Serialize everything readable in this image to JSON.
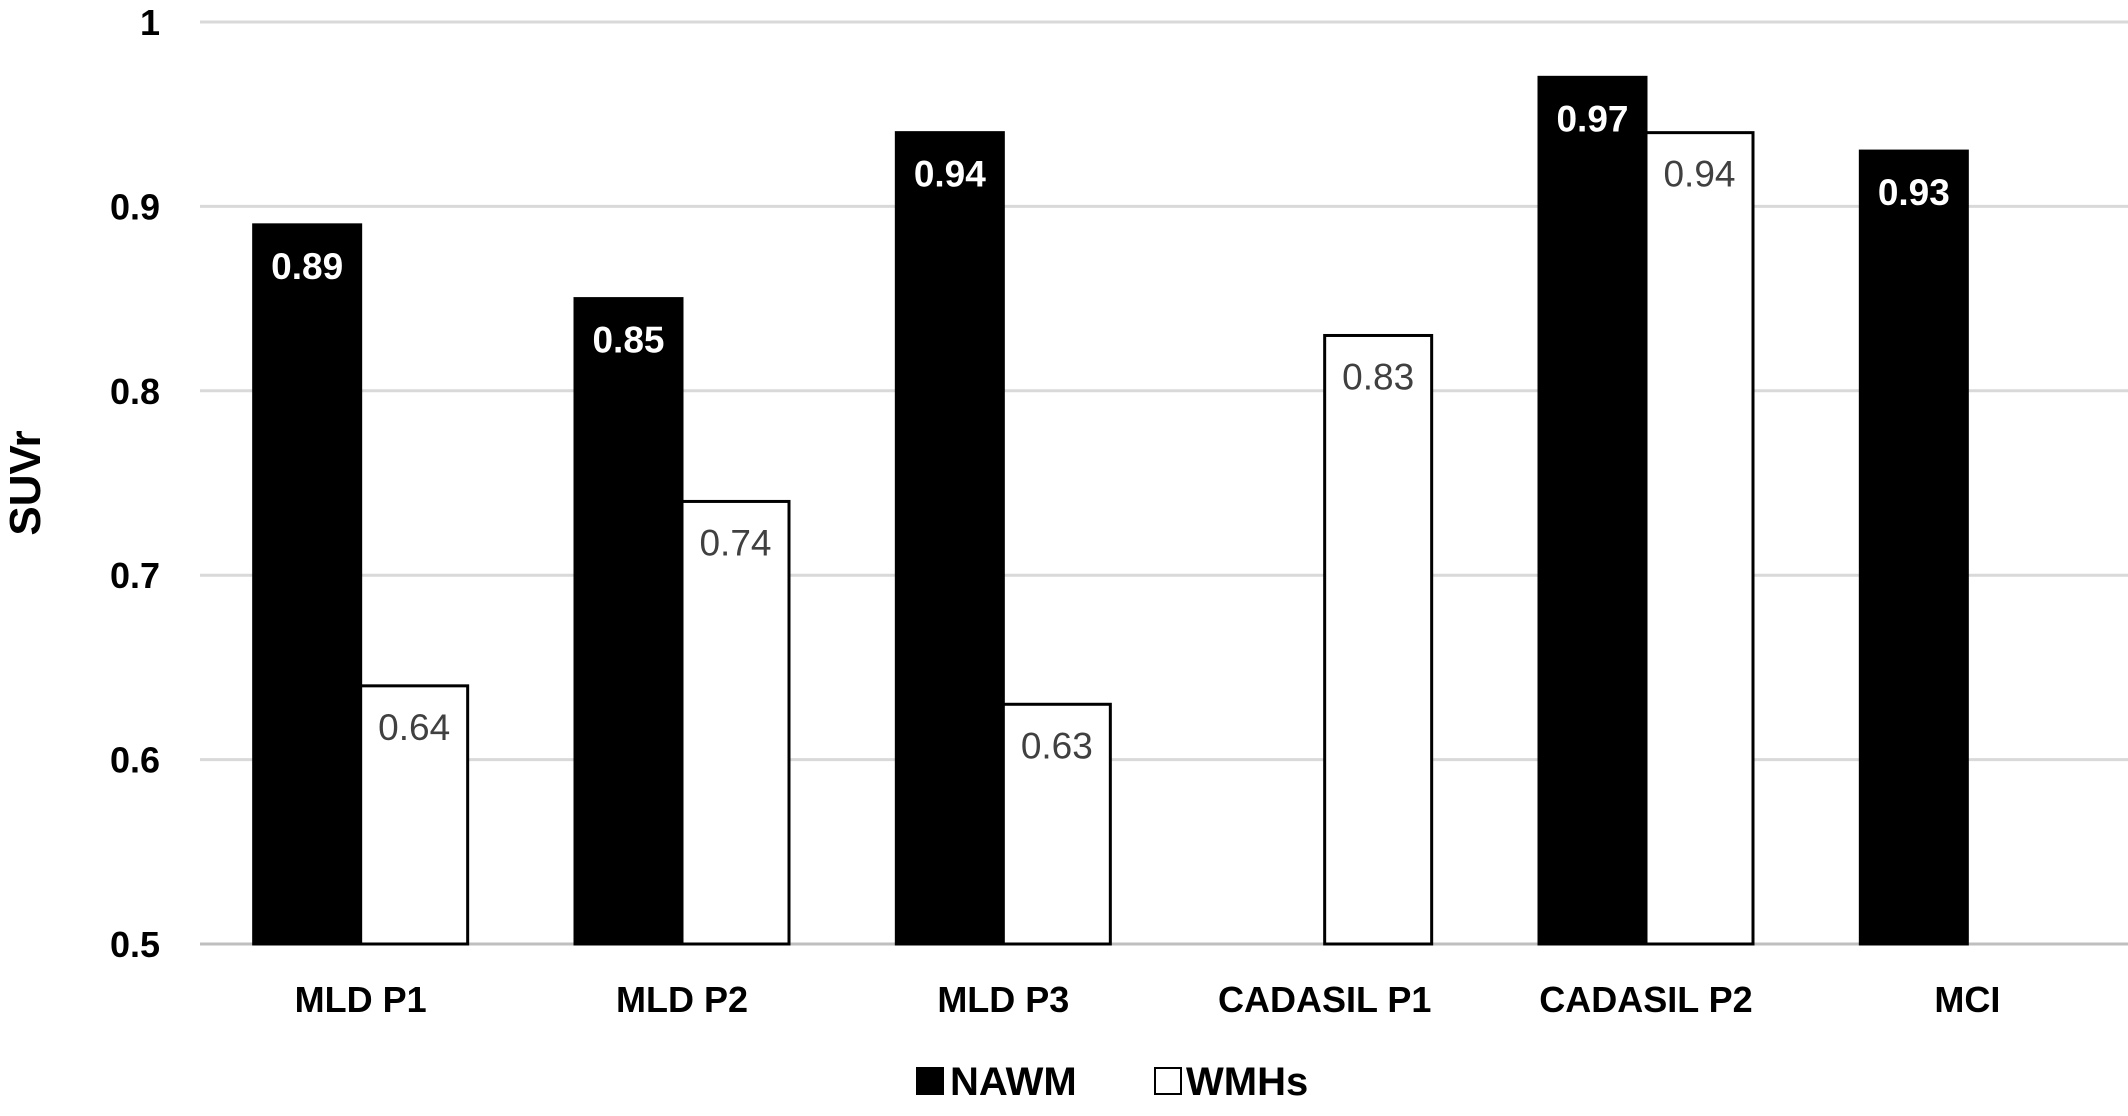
{
  "chart_data": {
    "type": "bar",
    "title": "",
    "xlabel": "",
    "ylabel": "SUVr",
    "ylim": [
      0.5,
      1
    ],
    "yticks": [
      "0.5",
      "0.6",
      "0.7",
      "0.8",
      "0.9",
      "1"
    ],
    "grid": true,
    "legend_position": "bottom",
    "categories": [
      "MLD P1",
      "MLD P2",
      "MLD P3",
      "CADASIL P1",
      "CADASIL P2",
      "MCI"
    ],
    "series": [
      {
        "name": "NAWM",
        "color": "#000000",
        "values": [
          0.89,
          0.85,
          0.94,
          null,
          0.97,
          0.93
        ],
        "labels": [
          "0.89",
          "0.85",
          "0.94",
          "",
          "0.97",
          "0.93"
        ]
      },
      {
        "name": "WMHs",
        "color": "#ffffff",
        "values": [
          0.64,
          0.74,
          0.63,
          0.83,
          0.94,
          null
        ],
        "labels": [
          "0.64",
          "0.74",
          "0.63",
          "0.83",
          "0.94",
          ""
        ]
      }
    ]
  }
}
